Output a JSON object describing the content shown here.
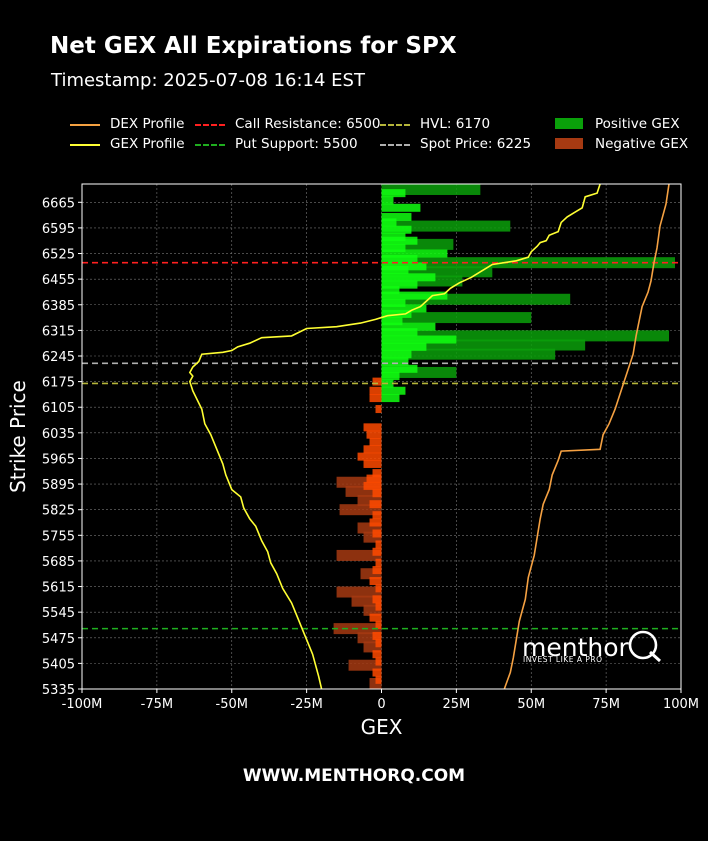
{
  "header": {
    "title": "Net GEX All Expirations for SPX",
    "subtitle": "Timestamp: 2025-07-08 16:14 EST"
  },
  "legend": [
    {
      "label": "DEX Profile",
      "kind": "line",
      "style": "solid",
      "color": "#f5a142"
    },
    {
      "label": "GEX Profile",
      "kind": "line",
      "style": "solid",
      "color": "#ffff33"
    },
    {
      "label": "Call Resistance: 6500",
      "kind": "line",
      "style": "dashed",
      "color": "#ff2020"
    },
    {
      "label": "Put Support: 5500",
      "kind": "line",
      "style": "dashed",
      "color": "#1fae1f"
    },
    {
      "label": "HVL: 6170",
      "kind": "line",
      "style": "dashed",
      "color": "#b5b53a"
    },
    {
      "label": "Spot Price: 6225",
      "kind": "line",
      "style": "dashed",
      "color": "#b0b0b0"
    },
    {
      "label": "Positive GEX",
      "kind": "box",
      "color": "#0aa00a"
    },
    {
      "label": "Negative GEX",
      "kind": "box",
      "color": "#a63a12"
    }
  ],
  "footer": "WWW.MENTHORQ.COM",
  "watermark": {
    "brand": "menthor",
    "mark": "Q",
    "tagline": "INVEST LIKE A PRO"
  },
  "chart_data": {
    "type": "bar",
    "orientation": "horizontal",
    "xlabel": "GEX",
    "ylabel": "Strike Price",
    "xlim": [
      -100,
      100
    ],
    "ylim": [
      5335,
      6715
    ],
    "x_ticks": [
      -100,
      -75,
      -50,
      -25,
      0,
      25,
      50,
      75,
      100
    ],
    "x_tick_labels": [
      "-100M",
      "-75M",
      "-50M",
      "-25M",
      "0",
      "25M",
      "50M",
      "75M",
      "100M"
    ],
    "y_ticks": [
      5335,
      5405,
      5475,
      5545,
      5615,
      5685,
      5755,
      5825,
      5895,
      5965,
      6035,
      6105,
      6175,
      6245,
      6315,
      6385,
      6455,
      6525,
      6595,
      6665
    ],
    "grid": true,
    "legend_position": "top",
    "units": "M",
    "levels": {
      "call_resistance": 6500,
      "put_support": 5500,
      "hvl": 6170,
      "spot_price": 6225
    },
    "colors": {
      "positive_bar": "#0aa00a",
      "positive_bar_bright": "#10ff10",
      "negative_bar": "#a63a12",
      "negative_bar_bright": "#ff4a00",
      "dex_line": "#f5a142",
      "gex_line": "#ffff33",
      "call_resistance": "#ff2020",
      "put_support": "#1fae1f",
      "hvl": "#b5b53a",
      "spot": "#b0b0b0",
      "grid": "#777777"
    },
    "positive_bars_broad": [
      {
        "strike": 6700,
        "value": 33
      },
      {
        "strike": 6600,
        "value": 43
      },
      {
        "strike": 6550,
        "value": 24
      },
      {
        "strike": 6500,
        "value": 98
      },
      {
        "strike": 6475,
        "value": 37
      },
      {
        "strike": 6450,
        "value": 27
      },
      {
        "strike": 6400,
        "value": 63
      },
      {
        "strike": 6350,
        "value": 50
      },
      {
        "strike": 6300,
        "value": 96
      },
      {
        "strike": 6275,
        "value": 68
      },
      {
        "strike": 6250,
        "value": 58
      },
      {
        "strike": 6200,
        "value": 25
      }
    ],
    "positive_bars_fine": [
      {
        "strike": 6690,
        "value": 8
      },
      {
        "strike": 6670,
        "value": 4
      },
      {
        "strike": 6650,
        "value": 13
      },
      {
        "strike": 6625,
        "value": 10
      },
      {
        "strike": 6610,
        "value": 5
      },
      {
        "strike": 6590,
        "value": 10
      },
      {
        "strike": 6570,
        "value": 8
      },
      {
        "strike": 6560,
        "value": 12
      },
      {
        "strike": 6540,
        "value": 8
      },
      {
        "strike": 6525,
        "value": 22
      },
      {
        "strike": 6510,
        "value": 12
      },
      {
        "strike": 6490,
        "value": 15
      },
      {
        "strike": 6480,
        "value": 9
      },
      {
        "strike": 6460,
        "value": 18
      },
      {
        "strike": 6440,
        "value": 12
      },
      {
        "strike": 6425,
        "value": 6
      },
      {
        "strike": 6410,
        "value": 22
      },
      {
        "strike": 6390,
        "value": 8
      },
      {
        "strike": 6375,
        "value": 15
      },
      {
        "strike": 6360,
        "value": 10
      },
      {
        "strike": 6340,
        "value": 7
      },
      {
        "strike": 6325,
        "value": 18
      },
      {
        "strike": 6310,
        "value": 12
      },
      {
        "strike": 6290,
        "value": 25
      },
      {
        "strike": 6270,
        "value": 15
      },
      {
        "strike": 6250,
        "value": 10
      },
      {
        "strike": 6230,
        "value": 9
      },
      {
        "strike": 6210,
        "value": 12
      },
      {
        "strike": 6190,
        "value": 6
      },
      {
        "strike": 6170,
        "value": 4
      },
      {
        "strike": 6150,
        "value": 8
      },
      {
        "strike": 6130,
        "value": 6
      }
    ],
    "negative_bars_broad": [
      {
        "strike": 5900,
        "value": -15
      },
      {
        "strike": 5875,
        "value": -12
      },
      {
        "strike": 5850,
        "value": -8
      },
      {
        "strike": 5825,
        "value": -14
      },
      {
        "strike": 5775,
        "value": -8
      },
      {
        "strike": 5750,
        "value": -6
      },
      {
        "strike": 5700,
        "value": -15
      },
      {
        "strike": 5650,
        "value": -7
      },
      {
        "strike": 5600,
        "value": -15
      },
      {
        "strike": 5575,
        "value": -10
      },
      {
        "strike": 5550,
        "value": -6
      },
      {
        "strike": 5500,
        "value": -16
      },
      {
        "strike": 5475,
        "value": -8
      },
      {
        "strike": 5450,
        "value": -6
      },
      {
        "strike": 5400,
        "value": -11
      },
      {
        "strike": 5350,
        "value": -4
      }
    ],
    "negative_bars_fine": [
      {
        "strike": 6175,
        "value": -3
      },
      {
        "strike": 6150,
        "value": -4
      },
      {
        "strike": 6130,
        "value": -4
      },
      {
        "strike": 6100,
        "value": -2
      },
      {
        "strike": 6050,
        "value": -6
      },
      {
        "strike": 6030,
        "value": -5
      },
      {
        "strike": 6010,
        "value": -4
      },
      {
        "strike": 5990,
        "value": -6
      },
      {
        "strike": 5970,
        "value": -8
      },
      {
        "strike": 5950,
        "value": -6
      },
      {
        "strike": 5925,
        "value": -3
      },
      {
        "strike": 5910,
        "value": -5
      },
      {
        "strike": 5890,
        "value": -6
      },
      {
        "strike": 5870,
        "value": -3
      },
      {
        "strike": 5840,
        "value": -4
      },
      {
        "strike": 5810,
        "value": -3
      },
      {
        "strike": 5790,
        "value": -4
      },
      {
        "strike": 5760,
        "value": -3
      },
      {
        "strike": 5730,
        "value": -2
      },
      {
        "strike": 5710,
        "value": -3
      },
      {
        "strike": 5680,
        "value": -2
      },
      {
        "strike": 5660,
        "value": -3
      },
      {
        "strike": 5630,
        "value": -4
      },
      {
        "strike": 5610,
        "value": -2
      },
      {
        "strike": 5580,
        "value": -3
      },
      {
        "strike": 5560,
        "value": -2
      },
      {
        "strike": 5530,
        "value": -4
      },
      {
        "strike": 5510,
        "value": -2
      },
      {
        "strike": 5480,
        "value": -3
      },
      {
        "strike": 5460,
        "value": -2
      },
      {
        "strike": 5430,
        "value": -3
      },
      {
        "strike": 5410,
        "value": -2
      },
      {
        "strike": 5380,
        "value": -3
      },
      {
        "strike": 5360,
        "value": -2
      }
    ],
    "gex_profile": [
      {
        "x": 73,
        "y": 6715
      },
      {
        "x": 72,
        "y": 6690
      },
      {
        "x": 68,
        "y": 6680
      },
      {
        "x": 67,
        "y": 6650
      },
      {
        "x": 65,
        "y": 6640
      },
      {
        "x": 62,
        "y": 6625
      },
      {
        "x": 60,
        "y": 6610
      },
      {
        "x": 59,
        "y": 6585
      },
      {
        "x": 56,
        "y": 6575
      },
      {
        "x": 55,
        "y": 6560
      },
      {
        "x": 53,
        "y": 6555
      },
      {
        "x": 52,
        "y": 6545
      },
      {
        "x": 50,
        "y": 6530
      },
      {
        "x": 49,
        "y": 6515
      },
      {
        "x": 45,
        "y": 6505
      },
      {
        "x": 37,
        "y": 6495
      },
      {
        "x": 35,
        "y": 6485
      },
      {
        "x": 33,
        "y": 6475
      },
      {
        "x": 30,
        "y": 6460
      },
      {
        "x": 26,
        "y": 6445
      },
      {
        "x": 23,
        "y": 6430
      },
      {
        "x": 21,
        "y": 6415
      },
      {
        "x": 17,
        "y": 6410
      },
      {
        "x": 15,
        "y": 6395
      },
      {
        "x": 13,
        "y": 6380
      },
      {
        "x": 10,
        "y": 6370
      },
      {
        "x": 8,
        "y": 6360
      },
      {
        "x": 2,
        "y": 6355
      },
      {
        "x": -2,
        "y": 6345
      },
      {
        "x": -7,
        "y": 6335
      },
      {
        "x": -15,
        "y": 6325
      },
      {
        "x": -25,
        "y": 6320
      },
      {
        "x": -30,
        "y": 6300
      },
      {
        "x": -40,
        "y": 6295
      },
      {
        "x": -44,
        "y": 6280
      },
      {
        "x": -48,
        "y": 6270
      },
      {
        "x": -50,
        "y": 6260
      },
      {
        "x": -53,
        "y": 6255
      },
      {
        "x": -60,
        "y": 6250
      },
      {
        "x": -61,
        "y": 6230
      },
      {
        "x": -63,
        "y": 6215
      },
      {
        "x": -64,
        "y": 6200
      },
      {
        "x": -63,
        "y": 6190
      },
      {
        "x": -64,
        "y": 6175
      },
      {
        "x": -63,
        "y": 6150
      },
      {
        "x": -60,
        "y": 6100
      },
      {
        "x": -59,
        "y": 6060
      },
      {
        "x": -57,
        "y": 6030
      },
      {
        "x": -55,
        "y": 5990
      },
      {
        "x": -53,
        "y": 5950
      },
      {
        "x": -52,
        "y": 5920
      },
      {
        "x": -50,
        "y": 5880
      },
      {
        "x": -47,
        "y": 5860
      },
      {
        "x": -46,
        "y": 5830
      },
      {
        "x": -44,
        "y": 5800
      },
      {
        "x": -42,
        "y": 5780
      },
      {
        "x": -40,
        "y": 5740
      },
      {
        "x": -38,
        "y": 5710
      },
      {
        "x": -37,
        "y": 5680
      },
      {
        "x": -35,
        "y": 5650
      },
      {
        "x": -33,
        "y": 5610
      },
      {
        "x": -30,
        "y": 5570
      },
      {
        "x": -28,
        "y": 5530
      },
      {
        "x": -26,
        "y": 5490
      },
      {
        "x": -25,
        "y": 5470
      },
      {
        "x": -23,
        "y": 5430
      },
      {
        "x": -22,
        "y": 5400
      },
      {
        "x": -21,
        "y": 5370
      },
      {
        "x": -20,
        "y": 5335
      }
    ],
    "dex_profile": [
      {
        "x": 96,
        "y": 6715
      },
      {
        "x": 95,
        "y": 6660
      },
      {
        "x": 93,
        "y": 6600
      },
      {
        "x": 92,
        "y": 6540
      },
      {
        "x": 91,
        "y": 6500
      },
      {
        "x": 90,
        "y": 6450
      },
      {
        "x": 89,
        "y": 6420
      },
      {
        "x": 87,
        "y": 6380
      },
      {
        "x": 86,
        "y": 6340
      },
      {
        "x": 85,
        "y": 6300
      },
      {
        "x": 84,
        "y": 6250
      },
      {
        "x": 82,
        "y": 6200
      },
      {
        "x": 80,
        "y": 6150
      },
      {
        "x": 78,
        "y": 6100
      },
      {
        "x": 76,
        "y": 6060
      },
      {
        "x": 74,
        "y": 6030
      },
      {
        "x": 73,
        "y": 5990
      },
      {
        "x": 60,
        "y": 5985
      },
      {
        "x": 59,
        "y": 5960
      },
      {
        "x": 57,
        "y": 5920
      },
      {
        "x": 56,
        "y": 5880
      },
      {
        "x": 54,
        "y": 5840
      },
      {
        "x": 53,
        "y": 5800
      },
      {
        "x": 52,
        "y": 5750
      },
      {
        "x": 51,
        "y": 5700
      },
      {
        "x": 49,
        "y": 5640
      },
      {
        "x": 48,
        "y": 5580
      },
      {
        "x": 46,
        "y": 5520
      },
      {
        "x": 45,
        "y": 5470
      },
      {
        "x": 44,
        "y": 5420
      },
      {
        "x": 43,
        "y": 5380
      },
      {
        "x": 41,
        "y": 5335
      }
    ]
  }
}
